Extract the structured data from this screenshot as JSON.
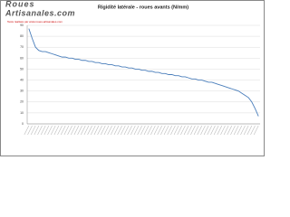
{
  "chart_data": {
    "type": "line",
    "title": "Rigidité latérale - roues avants (N/mm)",
    "subtitle": "Tests réalisés par www.roues-artisanales.com",
    "logo_top": "Roues",
    "logo_bottom": "Artisanales.com",
    "categories": [
      null,
      null,
      null,
      null,
      null,
      null,
      null,
      null,
      null,
      null,
      null,
      null,
      null,
      null,
      null,
      null,
      null,
      null,
      null,
      null,
      null,
      null,
      null,
      null,
      null,
      null,
      null,
      null,
      null,
      null,
      null,
      null,
      null,
      null,
      null,
      null,
      null,
      null,
      null,
      null,
      null,
      null,
      null,
      null,
      null,
      null,
      null,
      null,
      null,
      null,
      null,
      null,
      null,
      null,
      null,
      null,
      null,
      null,
      null,
      null,
      null,
      null,
      null,
      null,
      null,
      null,
      null,
      null,
      null,
      null
    ],
    "series": [
      {
        "color": "#4a7ebb",
        "values": [
          87,
          78,
          70,
          67,
          66,
          66,
          65,
          64,
          63,
          62,
          61,
          61,
          60,
          60,
          59,
          59,
          58,
          58,
          57,
          57,
          56,
          56,
          55,
          55,
          54,
          54,
          53,
          53,
          52,
          52,
          51,
          51,
          50,
          50,
          49,
          49,
          48,
          48,
          47,
          47,
          46,
          46,
          45,
          45,
          44,
          44,
          43,
          43,
          42,
          41,
          41,
          40,
          40,
          39,
          38,
          38,
          37,
          36,
          35,
          34,
          33,
          32,
          31,
          30,
          28,
          26,
          24,
          20,
          14,
          7
        ]
      }
    ],
    "ylim": [
      0,
      90
    ],
    "yticks": [
      0,
      10,
      20,
      30,
      40,
      50,
      60,
      70,
      80,
      90
    ],
    "grid": true
  }
}
